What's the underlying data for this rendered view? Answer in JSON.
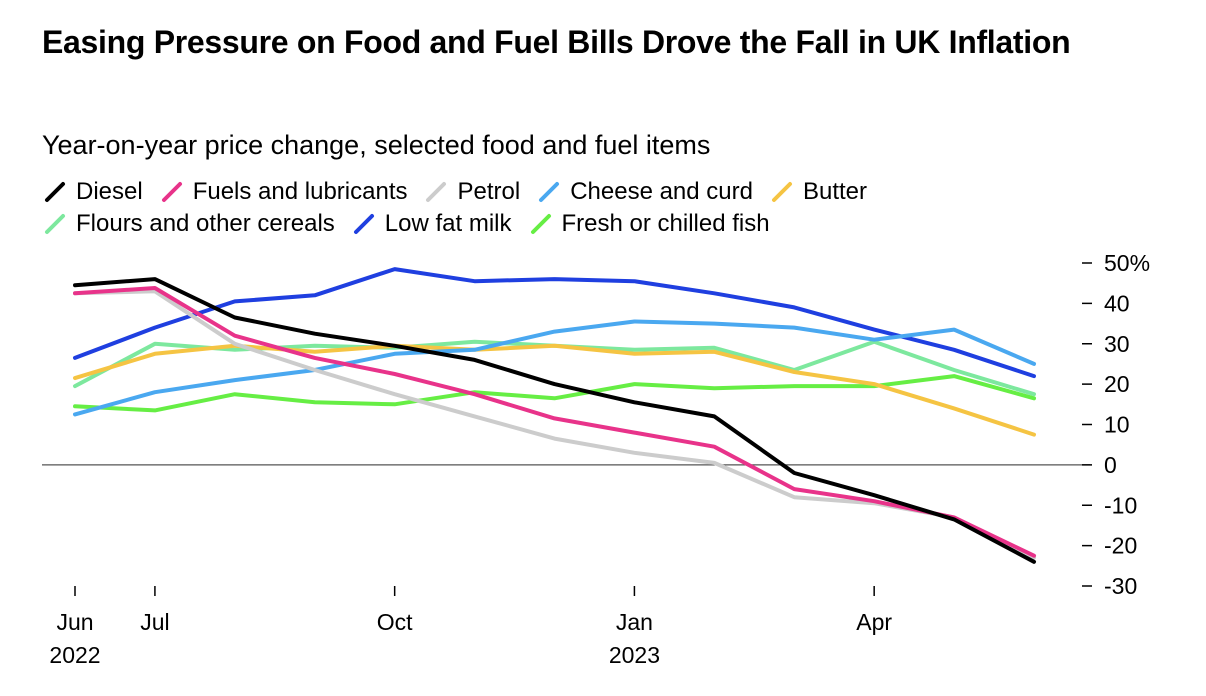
{
  "title": "Easing Pressure on Food and Fuel Bills Drove the Fall in UK Inflation",
  "subtitle": "Year-on-year price change, selected food and fuel items",
  "chart_data": {
    "type": "line",
    "title": "Easing Pressure on Food and Fuel Bills Drove the Fall in UK Inflation",
    "subtitle": "Year-on-year price change, selected food and fuel items",
    "x": [
      "2022-06",
      "2022-07",
      "2022-08",
      "2022-09",
      "2022-10",
      "2022-11",
      "2022-12",
      "2023-01",
      "2023-02",
      "2023-03",
      "2023-04",
      "2023-05",
      "2023-06"
    ],
    "x_ticks": [
      {
        "month": "2022-06",
        "label": "Jun",
        "year": "2022"
      },
      {
        "month": "2022-07",
        "label": "Jul",
        "year": ""
      },
      {
        "month": "2022-10",
        "label": "Oct",
        "year": ""
      },
      {
        "month": "2023-01",
        "label": "Jan",
        "year": "2023"
      },
      {
        "month": "2023-04",
        "label": "Apr",
        "year": ""
      }
    ],
    "y_ticks": [
      {
        "value": 50,
        "label": "50%"
      },
      {
        "value": 40,
        "label": "40"
      },
      {
        "value": 30,
        "label": "30"
      },
      {
        "value": 20,
        "label": "20"
      },
      {
        "value": 10,
        "label": "10"
      },
      {
        "value": 0,
        "label": "0"
      },
      {
        "value": -10,
        "label": "-10"
      },
      {
        "value": -20,
        "label": "-20"
      },
      {
        "value": -30,
        "label": "-30"
      }
    ],
    "ylim": [
      -30,
      50
    ],
    "y_axis_position": "right",
    "zero_line": true,
    "grid": false,
    "legend_position": "top-left",
    "series": [
      {
        "name": "Diesel",
        "color": "#000000",
        "values": [
          44.5,
          46,
          36.5,
          32.5,
          29.5,
          26,
          20,
          15.5,
          12,
          -2,
          -7.5,
          -13.5,
          -24
        ]
      },
      {
        "name": "Fuels and lubricants",
        "color": "#e8338a",
        "values": [
          42.5,
          43.8,
          32,
          26.5,
          22.5,
          17.5,
          11.5,
          8,
          4.5,
          -6,
          -9,
          -13,
          -22.5
        ]
      },
      {
        "name": "Petrol",
        "color": "#cccccc",
        "values": [
          42.5,
          43,
          30,
          23.5,
          17.5,
          12,
          6.5,
          3,
          0.5,
          -8,
          -9.5,
          -13,
          -23
        ]
      },
      {
        "name": "Cheese and curd",
        "color": "#4aa8f0",
        "values": [
          12.5,
          18,
          21,
          23.5,
          27.5,
          28.5,
          33,
          35.5,
          35,
          34,
          31,
          33.5,
          25
        ]
      },
      {
        "name": "Butter",
        "color": "#f5c443",
        "values": [
          21.5,
          27.5,
          29.5,
          28,
          29.5,
          28.5,
          29.5,
          27.5,
          28,
          23,
          20,
          14,
          7.5
        ]
      },
      {
        "name": "Flours and other cereals",
        "color": "#7de89e",
        "values": [
          19.5,
          30,
          28.5,
          29.5,
          29,
          30.5,
          29.5,
          28.5,
          29,
          23.5,
          30.5,
          23.5,
          17.5
        ]
      },
      {
        "name": "Low fat milk",
        "color": "#1f3fe0",
        "values": [
          26.5,
          34,
          40.5,
          42,
          48.5,
          45.5,
          46,
          45.5,
          42.5,
          39,
          33.5,
          28.5,
          22
        ]
      },
      {
        "name": "Fresh or chilled fish",
        "color": "#66ee44",
        "values": [
          14.5,
          13.5,
          17.5,
          15.5,
          15,
          18,
          16.5,
          20,
          19,
          19.5,
          19.5,
          22,
          16.5
        ]
      }
    ]
  }
}
